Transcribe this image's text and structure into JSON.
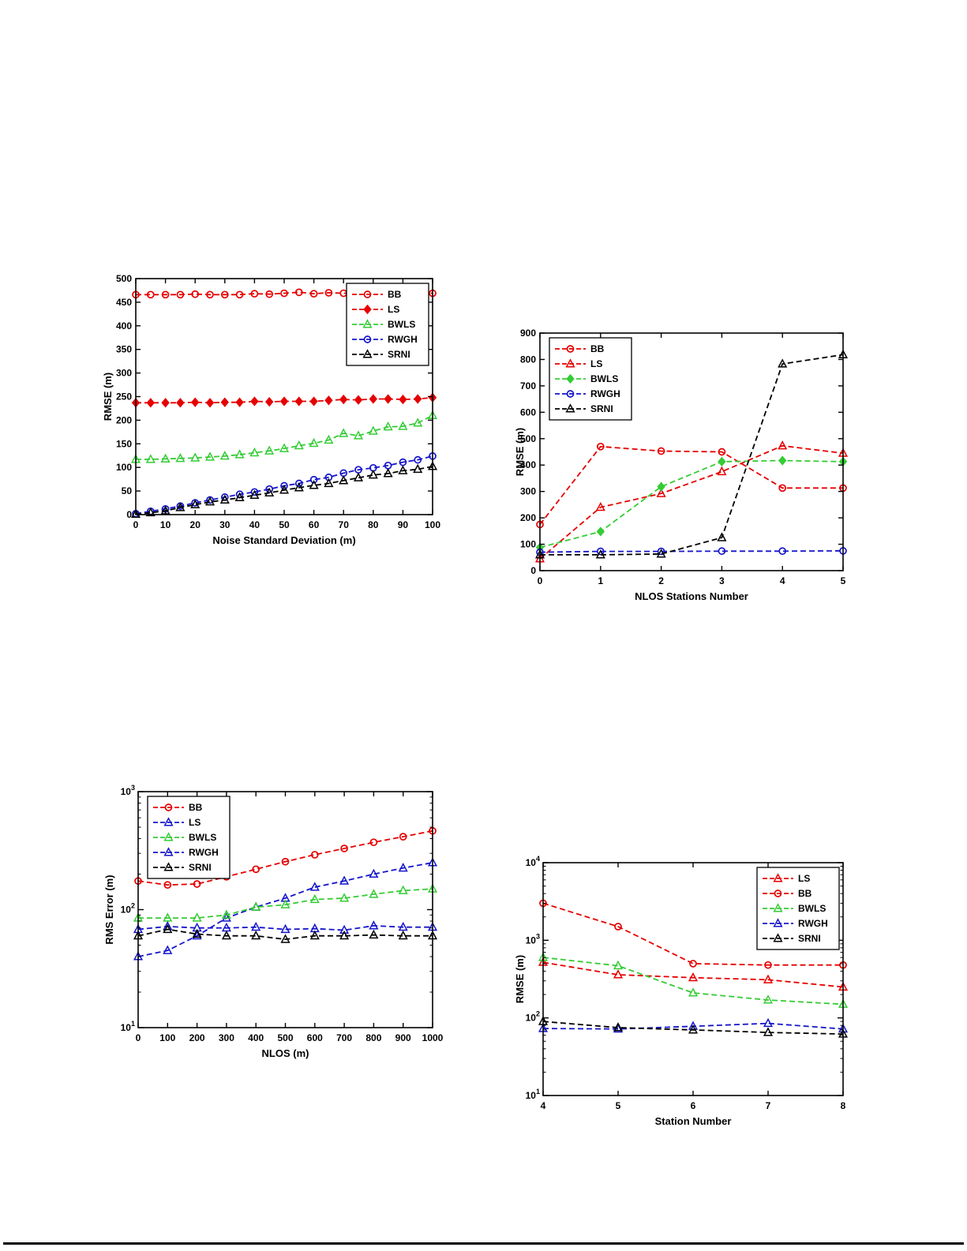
{
  "page": {
    "background": "#ffffff",
    "text_color": "#000000",
    "axis_color": "#000000"
  },
  "chart_data": [
    {
      "id": "rmse-vs-noise",
      "type": "line",
      "title": "",
      "xlabel": "Noise Standard Deviation (m)",
      "ylabel": "RMSE (m)",
      "xlim": [
        0,
        100
      ],
      "xticks": [
        0,
        10,
        20,
        30,
        40,
        50,
        60,
        70,
        80,
        90,
        100
      ],
      "yscale": "linear",
      "ylim": [
        0,
        500
      ],
      "yticks": [
        0,
        50,
        100,
        150,
        200,
        250,
        300,
        350,
        400,
        450,
        500
      ],
      "grid": false,
      "legend": {
        "position": "top-right"
      },
      "x": [
        0,
        5,
        10,
        15,
        20,
        25,
        30,
        35,
        40,
        45,
        50,
        55,
        60,
        65,
        70,
        75,
        80,
        85,
        90,
        95,
        100
      ],
      "series": [
        {
          "name": "BB",
          "color": "#e60000",
          "marker": "circle",
          "filled": false,
          "values": [
            466,
            466,
            466,
            466,
            467,
            466,
            466,
            466,
            468,
            467,
            469,
            471,
            468,
            470,
            469,
            470,
            469,
            469,
            470,
            470,
            469
          ]
        },
        {
          "name": "LS",
          "color": "#e60000",
          "marker": "diamond",
          "filled": true,
          "values": [
            237,
            237,
            237,
            237,
            238,
            237,
            238,
            238,
            240,
            239,
            240,
            240,
            240,
            242,
            244,
            243,
            245,
            245,
            244,
            245,
            248
          ]
        },
        {
          "name": "BWLS",
          "color": "#35cc35",
          "marker": "triangle",
          "filled": false,
          "values": [
            117,
            117,
            118,
            119,
            120,
            122,
            124,
            127,
            131,
            135,
            140,
            146,
            151,
            158,
            172,
            167,
            177,
            186,
            187,
            194,
            210
          ]
        },
        {
          "name": "RWGH",
          "color": "#1515cc",
          "marker": "circle",
          "filled": false,
          "values": [
            2,
            7,
            12,
            18,
            25,
            31,
            37,
            43,
            48,
            54,
            61,
            66,
            74,
            79,
            88,
            95,
            99,
            104,
            111,
            116,
            124
          ]
        },
        {
          "name": "SRNI",
          "color": "#000000",
          "marker": "triangle",
          "filled": false,
          "values": [
            1,
            4,
            8,
            15,
            21,
            27,
            31,
            36,
            41,
            46,
            52,
            57,
            62,
            66,
            72,
            78,
            84,
            87,
            93,
            96,
            102
          ]
        }
      ]
    },
    {
      "id": "rmse-vs-nlos-stations",
      "type": "line",
      "title": "",
      "xlabel": "NLOS Stations Number",
      "ylabel": "RMSE (m)",
      "xlim": [
        0,
        5
      ],
      "xticks": [
        0,
        1,
        2,
        3,
        4,
        5
      ],
      "yscale": "linear",
      "ylim": [
        0,
        900
      ],
      "yticks": [
        0,
        100,
        200,
        300,
        400,
        500,
        600,
        700,
        800,
        900
      ],
      "grid": false,
      "legend": {
        "position": "top-left"
      },
      "x": [
        0,
        1,
        2,
        3,
        4,
        5
      ],
      "series": [
        {
          "name": "BB",
          "color": "#e60000",
          "marker": "circle",
          "filled": false,
          "values": [
            175,
            470,
            453,
            450,
            313,
            313
          ]
        },
        {
          "name": "LS",
          "color": "#e60000",
          "marker": "triangle",
          "filled": false,
          "values": [
            45,
            240,
            292,
            375,
            473,
            445
          ]
        },
        {
          "name": "BWLS",
          "color": "#35cc35",
          "marker": "diamond",
          "filled": true,
          "values": [
            88,
            148,
            318,
            413,
            417,
            413
          ]
        },
        {
          "name": "RWGH",
          "color": "#1515cc",
          "marker": "circle",
          "filled": false,
          "values": [
            70,
            73,
            73,
            74,
            74,
            75
          ]
        },
        {
          "name": "SRNI",
          "color": "#000000",
          "marker": "triangle",
          "filled": false,
          "values": [
            60,
            60,
            63,
            125,
            783,
            818
          ]
        }
      ]
    },
    {
      "id": "rms-error-vs-nlos",
      "type": "line",
      "title": "",
      "xlabel": "NLOS (m)",
      "ylabel": "RMS Error (m)",
      "xlim": [
        0,
        1000
      ],
      "xticks": [
        0,
        100,
        200,
        300,
        400,
        500,
        600,
        700,
        800,
        900,
        1000
      ],
      "yscale": "log",
      "ylim": [
        10,
        1000
      ],
      "ydecades": [
        1,
        2,
        3
      ],
      "grid": false,
      "legend": {
        "position": "top-left"
      },
      "x": [
        0,
        100,
        200,
        300,
        400,
        500,
        600,
        700,
        800,
        900,
        1000
      ],
      "series": [
        {
          "name": "BB",
          "color": "#e60000",
          "marker": "circle",
          "filled": false,
          "values": [
            175,
            162,
            165,
            190,
            220,
            255,
            292,
            330,
            372,
            415,
            465
          ]
        },
        {
          "name": "LS",
          "color": "#1515cc",
          "marker": "triangle",
          "filled": false,
          "values": [
            40,
            45,
            60,
            85,
            105,
            125,
            155,
            175,
            200,
            225,
            250
          ]
        },
        {
          "name": "BWLS",
          "color": "#35cc35",
          "marker": "triangle",
          "filled": false,
          "values": [
            85,
            85,
            85,
            90,
            105,
            110,
            122,
            125,
            135,
            145,
            150
          ]
        },
        {
          "name": "RWGH",
          "color": "#1515cc",
          "marker": "triangle",
          "filled": false,
          "values": [
            68,
            72,
            70,
            70,
            71,
            68,
            69,
            67,
            73,
            71,
            71
          ]
        },
        {
          "name": "SRNI",
          "color": "#000000",
          "marker": "triangle",
          "filled": false,
          "values": [
            60,
            68,
            62,
            60,
            60,
            56,
            60,
            60,
            61,
            60,
            60
          ]
        }
      ]
    },
    {
      "id": "rmse-vs-station-number",
      "type": "line",
      "title": "",
      "xlabel": "Station Number",
      "ylabel": "RMSE (m)",
      "xlim": [
        4,
        8
      ],
      "xticks": [
        4,
        5,
        6,
        7,
        8
      ],
      "yscale": "log",
      "ylim": [
        10,
        10000
      ],
      "ydecades": [
        1,
        2,
        3,
        4
      ],
      "grid": false,
      "legend": {
        "position": "top-right"
      },
      "x": [
        4,
        5,
        6,
        7,
        8
      ],
      "series": [
        {
          "name": "LS",
          "color": "#e60000",
          "marker": "triangle",
          "filled": false,
          "values": [
            520,
            360,
            330,
            310,
            250
          ]
        },
        {
          "name": "BB",
          "color": "#e60000",
          "marker": "circle",
          "filled": false,
          "values": [
            3000,
            1500,
            500,
            480,
            480
          ]
        },
        {
          "name": "BWLS",
          "color": "#35cc35",
          "marker": "triangle",
          "filled": false,
          "values": [
            600,
            470,
            210,
            170,
            150
          ]
        },
        {
          "name": "RWGH",
          "color": "#1515cc",
          "marker": "triangle",
          "filled": false,
          "values": [
            73,
            72,
            78,
            85,
            72
          ]
        },
        {
          "name": "SRNI",
          "color": "#000000",
          "marker": "triangle",
          "filled": false,
          "values": [
            90,
            75,
            70,
            65,
            62
          ]
        }
      ]
    }
  ]
}
